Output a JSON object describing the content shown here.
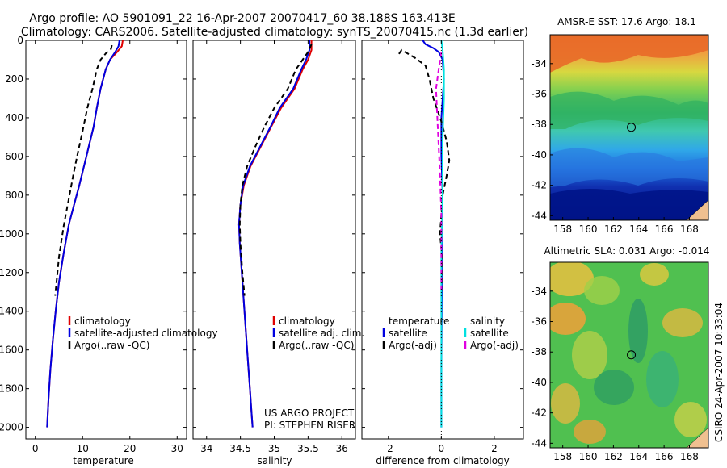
{
  "header": {
    "title_line1": "Argo profile: AO 5901091_22 16-Apr-2007 20070417_60 38.188S 163.413E",
    "title_line2": "Climatology: CARS2006. Satellite-adjusted climatology: synTS_20070415.nc (1.3d earlier)"
  },
  "side_note": "CSIRO 24-Apr-2007 10:33:04",
  "colors": {
    "climatology": "#e00000",
    "satellite": "#0000e0",
    "argo": "#000000",
    "sal_satellite": "#00e0e0",
    "sal_argo": "#e000e0"
  },
  "chart_data": [
    {
      "id": "temperature",
      "type": "line",
      "xlabel": "temperature",
      "xlim": [
        -2,
        32
      ],
      "ylim": [
        0,
        2060
      ],
      "xticks": [
        "0",
        "10",
        "20",
        "30"
      ],
      "xtick_values": [
        0,
        10,
        20,
        30
      ],
      "yticks": [
        "0",
        "200",
        "400",
        "600",
        "800",
        "1000",
        "1200",
        "1400",
        "1600",
        "1800",
        "2000"
      ],
      "ytick_values": [
        0,
        200,
        400,
        600,
        800,
        1000,
        1200,
        1400,
        1600,
        1800,
        2000
      ],
      "legend": [
        "climatology",
        "satellite-adjusted climatology",
        "Argo(..raw -QC)"
      ],
      "series": [
        {
          "name": "climatology",
          "style": "solid",
          "color": "climatology",
          "x": [
            18.5,
            18.3,
            17.3,
            15.8,
            14.9,
            13.8,
            13.0,
            12.3,
            11.3,
            10.3,
            9.3,
            8.2,
            7.1,
            6.0,
            5.0,
            4.3,
            3.7,
            3.2,
            2.8,
            2.5
          ],
          "y": [
            0,
            30,
            60,
            100,
            150,
            250,
            350,
            450,
            550,
            650,
            750,
            850,
            950,
            1100,
            1250,
            1400,
            1550,
            1700,
            1850,
            2000
          ]
        },
        {
          "name": "satellite-adjusted climatology",
          "style": "solid",
          "color": "satellite",
          "x": [
            17.8,
            17.6,
            16.9,
            15.8,
            14.9,
            13.8,
            13.0,
            12.3,
            11.3,
            10.3,
            9.3,
            8.2,
            7.1,
            6.0,
            5.0,
            4.3,
            3.7,
            3.2,
            2.8,
            2.5
          ],
          "y": [
            0,
            30,
            60,
            100,
            150,
            250,
            350,
            450,
            550,
            650,
            750,
            850,
            950,
            1100,
            1250,
            1400,
            1550,
            1700,
            1850,
            2000
          ]
        },
        {
          "name": "Argo(..raw -QC)",
          "style": "dashed",
          "color": "argo",
          "x": [
            16.2,
            16.0,
            15.0,
            13.8,
            13.0,
            12.1,
            11.0,
            10.0,
            9.0,
            8.0,
            7.0,
            6.0,
            5.0,
            4.2
          ],
          "y": [
            25,
            45,
            65,
            100,
            150,
            250,
            350,
            470,
            580,
            700,
            830,
            960,
            1120,
            1320
          ]
        }
      ]
    },
    {
      "id": "salinity",
      "type": "line",
      "xlabel": "salinity",
      "xlim": [
        33.8,
        36.2
      ],
      "ylim": [
        0,
        2060
      ],
      "xticks": [
        "34",
        "34.5",
        "35",
        "35.5",
        "36"
      ],
      "xtick_values": [
        34,
        34.5,
        35,
        35.5,
        36
      ],
      "legend": [
        "climatology",
        "satellite adj. clim.",
        "Argo(..raw -QC)"
      ],
      "credit_line1": "US ARGO PROJECT",
      "credit_line2": "PI: STEPHEN RISER",
      "series": [
        {
          "name": "climatology",
          "style": "solid",
          "color": "climatology",
          "x": [
            35.55,
            35.55,
            35.5,
            35.42,
            35.3,
            35.1,
            34.95,
            34.8,
            34.65,
            34.55,
            34.5,
            34.48,
            34.49,
            34.52,
            34.55,
            34.58,
            34.61,
            34.64,
            34.66,
            34.68
          ],
          "y": [
            0,
            50,
            100,
            150,
            250,
            350,
            450,
            550,
            650,
            750,
            850,
            950,
            1050,
            1200,
            1350,
            1500,
            1650,
            1800,
            1900,
            2000
          ]
        },
        {
          "name": "satellite adj. clim.",
          "style": "solid",
          "color": "satellite",
          "x": [
            35.52,
            35.52,
            35.47,
            35.4,
            35.28,
            35.08,
            34.94,
            34.79,
            34.64,
            34.54,
            34.5,
            34.48,
            34.49,
            34.52,
            34.55,
            34.58,
            34.61,
            34.64,
            34.66,
            34.68
          ],
          "y": [
            0,
            50,
            100,
            150,
            250,
            350,
            450,
            550,
            650,
            750,
            850,
            950,
            1050,
            1200,
            1350,
            1500,
            1650,
            1800,
            1900,
            2000
          ]
        },
        {
          "name": "Argo(..raw -QC)",
          "style": "dashed",
          "color": "argo",
          "x": [
            35.55,
            35.5,
            35.42,
            35.32,
            35.2,
            35.0,
            34.85,
            34.72,
            34.6,
            34.53,
            34.5,
            34.49,
            34.5,
            34.53,
            34.56
          ],
          "y": [
            20,
            60,
            100,
            150,
            250,
            350,
            450,
            550,
            650,
            750,
            850,
            950,
            1050,
            1200,
            1320
          ]
        }
      ]
    },
    {
      "id": "difference",
      "type": "line",
      "xlabel": "difference from climatology",
      "xlim": [
        -3,
        3.1
      ],
      "ylim": [
        0,
        2060
      ],
      "xticks": [
        "-2",
        "0",
        "2"
      ],
      "xtick_values": [
        -2,
        0,
        2
      ],
      "legend_headers": [
        "temperature",
        "salinity"
      ],
      "legend": [
        "satellite",
        "Argo(-adj)",
        "satellite",
        "Argo(-adj)"
      ],
      "series": [
        {
          "name": "temperature satellite",
          "style": "solid",
          "color": "satellite",
          "x": [
            -0.7,
            -0.6,
            -0.3,
            -0.1,
            0.05,
            0.1,
            0.05,
            0.0,
            0.0,
            0.05,
            0.05,
            0.02,
            0.0,
            0.0
          ],
          "y": [
            0,
            20,
            40,
            60,
            100,
            200,
            300,
            400,
            600,
            800,
            1000,
            1300,
            1700,
            2000
          ]
        },
        {
          "name": "temperature Argo(-adj)",
          "style": "dashed",
          "color": "argo",
          "x": [
            -1.6,
            -1.5,
            -1.0,
            -0.6,
            -0.45,
            -0.3,
            0.0,
            0.2,
            0.3,
            0.2,
            0.05,
            0.0,
            -0.05,
            0.05,
            0.0
          ],
          "y": [
            70,
            50,
            90,
            130,
            200,
            300,
            420,
            520,
            620,
            700,
            800,
            900,
            1000,
            1150,
            1320
          ]
        },
        {
          "name": "salinity satellite",
          "style": "solid",
          "color": "sal_satellite",
          "x": [
            0.0,
            0.05,
            0.1,
            0.1,
            0.05,
            0.05,
            0.0,
            0.0,
            0.0,
            0.0
          ],
          "y": [
            0,
            50,
            150,
            300,
            500,
            800,
            1100,
            1400,
            1700,
            2000
          ]
        },
        {
          "name": "salinity Argo(-adj)",
          "style": "dashed",
          "color": "sal_argo",
          "x": [
            0.0,
            -0.1,
            -0.2,
            -0.15,
            -0.1,
            -0.05,
            0.0,
            0.0
          ],
          "y": [
            60,
            150,
            250,
            400,
            550,
            700,
            900,
            1300
          ]
        }
      ]
    },
    {
      "id": "sst_map",
      "type": "heatmap",
      "title": "AMSR-E SST: 17.6 Argo: 18.1",
      "xlim": [
        157,
        169.5
      ],
      "ylim": [
        -44.3,
        -32.1
      ],
      "xticks": [
        "158",
        "160",
        "162",
        "164",
        "166",
        "168"
      ],
      "xtick_values": [
        158,
        160,
        162,
        164,
        166,
        168
      ],
      "yticks": [
        "-34",
        "-36",
        "-38",
        "-40",
        "-42",
        "-44"
      ],
      "ytick_values": [
        -34,
        -36,
        -38,
        -40,
        -42,
        -44
      ],
      "marker": {
        "lon": 163.413,
        "lat": -38.188
      }
    },
    {
      "id": "sla_map",
      "type": "heatmap",
      "title": "Altimetric SLA: 0.031 Argo: -0.014",
      "xlim": [
        157,
        169.5
      ],
      "ylim": [
        -44.3,
        -32.1
      ],
      "xticks": [
        "158",
        "160",
        "162",
        "164",
        "166",
        "168"
      ],
      "xtick_values": [
        158,
        160,
        162,
        164,
        166,
        168
      ],
      "yticks": [
        "-34",
        "-36",
        "-38",
        "-40",
        "-42",
        "-44"
      ],
      "ytick_values": [
        -34,
        -36,
        -38,
        -40,
        -42,
        -44
      ],
      "marker": {
        "lon": 163.413,
        "lat": -38.188
      }
    }
  ]
}
